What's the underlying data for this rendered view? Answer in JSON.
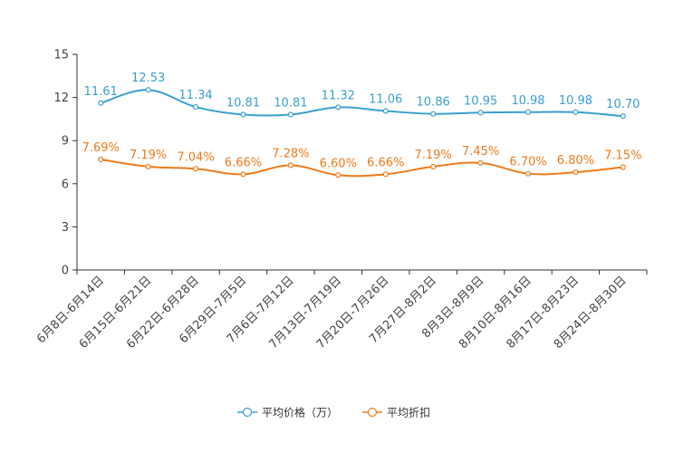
{
  "chart_data": {
    "type": "line",
    "title": "",
    "xlabel": "",
    "ylabel": "",
    "ylim": [
      0,
      15
    ],
    "yticks": [
      0,
      3,
      6,
      9,
      12,
      15
    ],
    "categories": [
      "6月8日-6月14日",
      "6月15日-6月21日",
      "6月22日-6月28日",
      "6月29日-7月5日",
      "7月6日-7月12日",
      "7月13日-7月19日",
      "7月20日-7月26日",
      "7月27日-8月2日",
      "8月3日-8月9日",
      "8月10日-8月16日",
      "8月17日-8月23日",
      "8月24日-8月30日"
    ],
    "series": [
      {
        "name": "平均价格（万）",
        "color": "#3a9fd0",
        "values": [
          11.61,
          12.53,
          11.34,
          10.81,
          10.81,
          11.32,
          11.06,
          10.86,
          10.95,
          10.98,
          10.98,
          10.7
        ],
        "labels": [
          "11.61",
          "12.53",
          "11.34",
          "10.81",
          "10.81",
          "11.32",
          "11.06",
          "10.86",
          "10.95",
          "10.98",
          "10.98",
          "10.70"
        ]
      },
      {
        "name": "平均折扣",
        "color": "#f07a1a",
        "values": [
          7.69,
          7.19,
          7.04,
          6.66,
          7.28,
          6.6,
          6.66,
          7.19,
          7.45,
          6.7,
          6.8,
          7.15
        ],
        "labels": [
          "7.69%",
          "7.19%",
          "7.04%",
          "6.66%",
          "7.28%",
          "6.60%",
          "6.66%",
          "7.19%",
          "7.45%",
          "6.70%",
          "6.80%",
          "7.15%"
        ]
      }
    ],
    "legend_position": "bottom-center",
    "grid": false
  }
}
